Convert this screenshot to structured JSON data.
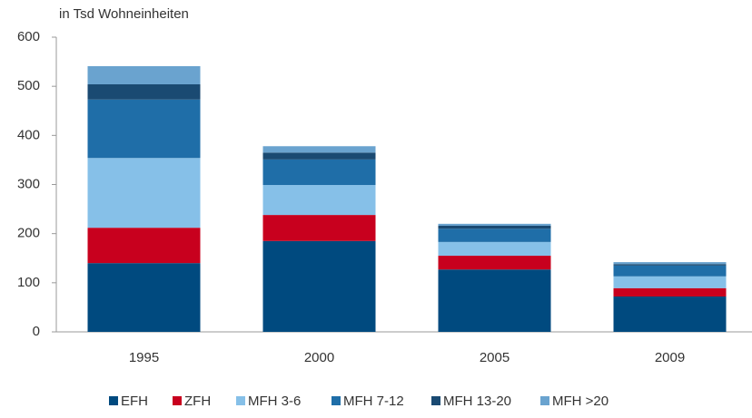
{
  "chart_data": {
    "type": "stacked_bar",
    "y_label": "in Tsd Wohneinheiten",
    "categories": [
      "1995",
      "2000",
      "2005",
      "2009"
    ],
    "series": [
      {
        "name": "EFH",
        "color": "#004a7f",
        "values": [
          140,
          185,
          127,
          72
        ]
      },
      {
        "name": "ZFH",
        "color": "#c8001e",
        "values": [
          72,
          53,
          28,
          17
        ]
      },
      {
        "name": "MFH 3-6",
        "color": "#86c0e8",
        "values": [
          142,
          61,
          28,
          24
        ]
      },
      {
        "name": "MFH 7-12",
        "color": "#1f6ea8",
        "values": [
          119,
          52,
          27,
          22
        ]
      },
      {
        "name": "MFH 13-20",
        "color": "#1a4a72",
        "values": [
          31,
          14,
          6,
          3
        ]
      },
      {
        "name": "MFH >20",
        "color": "#6aa3cf",
        "values": [
          37,
          13,
          4,
          4
        ]
      }
    ],
    "ylim": [
      0,
      600
    ],
    "yticks": [
      0,
      100,
      200,
      300,
      400,
      500,
      600
    ],
    "legend": "bottom"
  }
}
